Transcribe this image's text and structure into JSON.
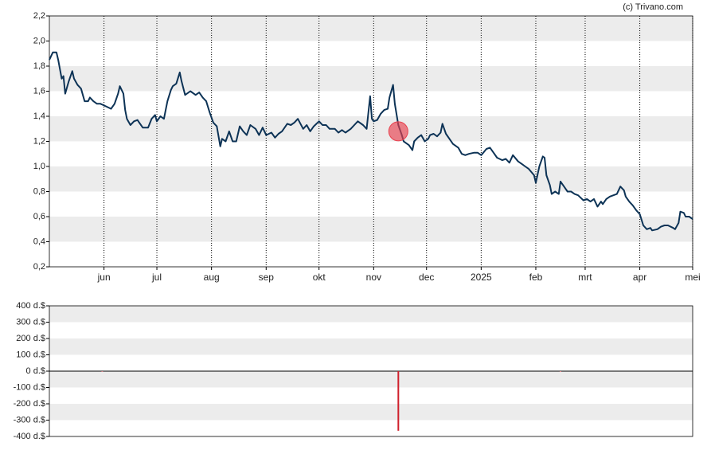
{
  "watermark": "(c) Trivano.com",
  "chart_data": [
    {
      "type": "line",
      "x": [
        0,
        2,
        4,
        5,
        7,
        8,
        9,
        11,
        13,
        14,
        16,
        18,
        20,
        22,
        23,
        25,
        27,
        29,
        32,
        35,
        37,
        39,
        40,
        42,
        43,
        44,
        46,
        48,
        50,
        51,
        53,
        56,
        58,
        60,
        61,
        63,
        65,
        66,
        67,
        69,
        70,
        72,
        74,
        75,
        77,
        79,
        80,
        83,
        85,
        87,
        89,
        91,
        93,
        95,
        97,
        98,
        100,
        102,
        104,
        106,
        108,
        110,
        112,
        114,
        117,
        119,
        121,
        123,
        126,
        128,
        130,
        132,
        135,
        137,
        139,
        141,
        144,
        146,
        148,
        150,
        153,
        155,
        157,
        159,
        162,
        164,
        166,
        168,
        171,
        173,
        175,
        178,
        180,
        182,
        183,
        184,
        186,
        188,
        190,
        192,
        193,
        195,
        196,
        198,
        200,
        201,
        204,
        206,
        207,
        209,
        211,
        213,
        215,
        216,
        218,
        220,
        222,
        223,
        225,
        227,
        229,
        232,
        234,
        236,
        238,
        241,
        243,
        245,
        248,
        250,
        252,
        254,
        257,
        259,
        261,
        263,
        266,
        268,
        270,
        272,
        275,
        276,
        278,
        280,
        281,
        282,
        284,
        285,
        287,
        289,
        290,
        292,
        294,
        296,
        298,
        300,
        303,
        305,
        307,
        309,
        311,
        313,
        314,
        316,
        318,
        320,
        322,
        324,
        326,
        327,
        329,
        331,
        333,
        335,
        337,
        339,
        341,
        342,
        345,
        347,
        349,
        351,
        354,
        355,
        357,
        358,
        360,
        361,
        363,
        365
      ],
      "series": [
        {
          "color": "#0d3356",
          "values": [
            1.85,
            1.91,
            1.91,
            1.85,
            1.7,
            1.72,
            1.58,
            1.68,
            1.76,
            1.7,
            1.65,
            1.62,
            1.52,
            1.52,
            1.55,
            1.52,
            1.5,
            1.5,
            1.48,
            1.46,
            1.5,
            1.58,
            1.64,
            1.58,
            1.45,
            1.38,
            1.33,
            1.36,
            1.37,
            1.35,
            1.31,
            1.31,
            1.38,
            1.41,
            1.36,
            1.4,
            1.38,
            1.45,
            1.52,
            1.61,
            1.64,
            1.66,
            1.75,
            1.68,
            1.57,
            1.59,
            1.6,
            1.57,
            1.59,
            1.55,
            1.52,
            1.43,
            1.35,
            1.32,
            1.16,
            1.22,
            1.2,
            1.28,
            1.2,
            1.2,
            1.32,
            1.28,
            1.25,
            1.33,
            1.3,
            1.25,
            1.31,
            1.25,
            1.27,
            1.23,
            1.26,
            1.28,
            1.34,
            1.33,
            1.35,
            1.38,
            1.3,
            1.33,
            1.28,
            1.32,
            1.36,
            1.33,
            1.33,
            1.3,
            1.3,
            1.27,
            1.29,
            1.27,
            1.3,
            1.33,
            1.36,
            1.33,
            1.3,
            1.56,
            1.38,
            1.36,
            1.37,
            1.42,
            1.45,
            1.46,
            1.55,
            1.65,
            1.5,
            1.33,
            1.25,
            1.2,
            1.17,
            1.13,
            1.2,
            1.23,
            1.25,
            1.2,
            1.22,
            1.25,
            1.26,
            1.24,
            1.27,
            1.34,
            1.26,
            1.22,
            1.18,
            1.15,
            1.1,
            1.09,
            1.1,
            1.11,
            1.11,
            1.09,
            1.14,
            1.15,
            1.11,
            1.07,
            1.05,
            1.06,
            1.03,
            1.09,
            1.04,
            1.02,
            1.0,
            0.98,
            0.93,
            0.87,
            1.0,
            1.08,
            1.07,
            0.93,
            0.85,
            0.78,
            0.8,
            0.78,
            0.88,
            0.84,
            0.8,
            0.8,
            0.78,
            0.77,
            0.73,
            0.74,
            0.72,
            0.74,
            0.68,
            0.72,
            0.7,
            0.74,
            0.76,
            0.77,
            0.78,
            0.84,
            0.81,
            0.76,
            0.72,
            0.69,
            0.65,
            0.62,
            0.53,
            0.5,
            0.51,
            0.49,
            0.5,
            0.52,
            0.53,
            0.53,
            0.51,
            0.5,
            0.55,
            0.64,
            0.63,
            0.6,
            0.6,
            0.58
          ]
        }
      ],
      "markers": [
        {
          "x": 198,
          "y": 1.28,
          "color": "#e8414e"
        }
      ],
      "xlim": [
        0,
        365
      ],
      "xticks": [
        {
          "value": 31,
          "label": "jun"
        },
        {
          "value": 61,
          "label": "jul"
        },
        {
          "value": 92,
          "label": "aug"
        },
        {
          "value": 123,
          "label": "sep"
        },
        {
          "value": 153,
          "label": "okt"
        },
        {
          "value": 184,
          "label": "nov"
        },
        {
          "value": 214,
          "label": "dec"
        },
        {
          "value": 245,
          "label": "2025"
        },
        {
          "value": 276,
          "label": "feb"
        },
        {
          "value": 304,
          "label": "mrt"
        },
        {
          "value": 335,
          "label": "apr"
        },
        {
          "value": 365,
          "label": "mei"
        }
      ],
      "ylim": [
        0.2,
        2.2
      ],
      "yticks": [
        {
          "value": 0.2,
          "label": "0,2"
        },
        {
          "value": 0.4,
          "label": "0,4"
        },
        {
          "value": 0.6,
          "label": "0,6"
        },
        {
          "value": 0.8,
          "label": "0,8"
        },
        {
          "value": 1.0,
          "label": "1,0"
        },
        {
          "value": 1.2,
          "label": "1,2"
        },
        {
          "value": 1.4,
          "label": "1,4"
        },
        {
          "value": 1.6,
          "label": "1,6"
        },
        {
          "value": 1.8,
          "label": "1,8"
        },
        {
          "value": 2.0,
          "label": "2,0"
        },
        {
          "value": 2.2,
          "label": "2,2"
        }
      ],
      "grid": true,
      "xgrid": true
    },
    {
      "type": "bar",
      "x": [
        30,
        198,
        290
      ],
      "values": [
        -2,
        -365,
        -2
      ],
      "color": "#d0202c",
      "xlim": [
        0,
        365
      ],
      "ylim": [
        -400,
        400
      ],
      "yticks": [
        {
          "value": -400,
          "label": "-400 d.$"
        },
        {
          "value": -300,
          "label": "-300 d.$"
        },
        {
          "value": -200,
          "label": "-200 d.$"
        },
        {
          "value": -100,
          "label": "-100 d.$"
        },
        {
          "value": 0,
          "label": "0 d.$"
        },
        {
          "value": 100,
          "label": "100 d.$"
        },
        {
          "value": 200,
          "label": "200 d.$"
        },
        {
          "value": 300,
          "label": "300 d.$"
        },
        {
          "value": 400,
          "label": "400 d.$"
        }
      ],
      "grid": true,
      "xgrid": false
    }
  ]
}
